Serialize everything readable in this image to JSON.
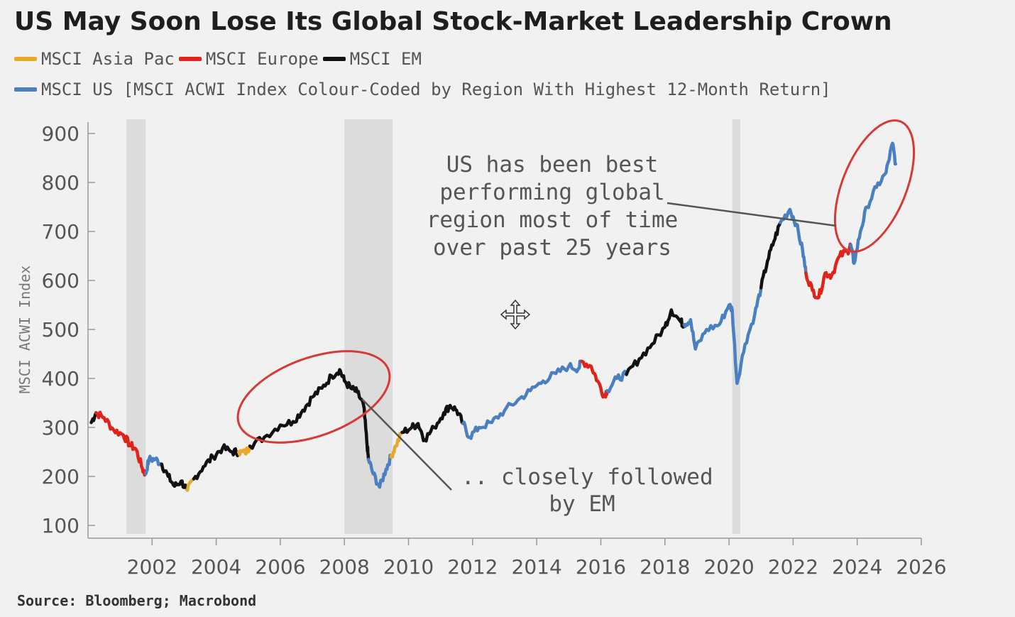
{
  "title": "US May Soon Lose Its Global Stock-Market Leadership Crown",
  "source": "Source: Bloomberg; Macrobond",
  "legend": [
    {
      "label": "MSCI Asia Pac",
      "color": "#e8a92a"
    },
    {
      "label": "MSCI Europe",
      "color": "#e0221b"
    },
    {
      "label": "MSCI EM",
      "color": "#111111"
    },
    {
      "label": "MSCI US [MSCI ACWI Index Colour-Coded by Region With Highest 12-Month Return]",
      "color": "#4a7fc0"
    }
  ],
  "chart_data": {
    "type": "line",
    "title": "US May Soon Lose Its Global Stock-Market Leadership Crown",
    "ylabel": "MSCI ACWI Index",
    "xlabel": "",
    "ylim": [
      100,
      900
    ],
    "xlim": [
      2000.0,
      2026.0
    ],
    "yticks": [
      "100",
      "200",
      "300",
      "400",
      "500",
      "600",
      "700",
      "800",
      "900"
    ],
    "xticks": [
      "2002",
      "2004",
      "2006",
      "2008",
      "2010",
      "2012",
      "2014",
      "2016",
      "2018",
      "2020",
      "2022",
      "2024",
      "2026"
    ],
    "region_colors": {
      "Asia Pac": "#e8a92a",
      "Europe": "#e0221b",
      "EM": "#111111",
      "US": "#4a7fc0"
    },
    "recessions": [
      [
        2001.2,
        2001.8
      ],
      [
        2008.0,
        2009.5
      ],
      [
        2020.1,
        2020.35
      ]
    ],
    "segments": [
      {
        "region": "EM",
        "points": [
          [
            2000.1,
            310
          ],
          [
            2000.25,
            330
          ]
        ]
      },
      {
        "region": "Europe",
        "points": [
          [
            2000.25,
            330
          ],
          [
            2000.5,
            320
          ],
          [
            2000.8,
            295
          ],
          [
            2001.1,
            285
          ],
          [
            2001.3,
            265
          ],
          [
            2001.5,
            255
          ],
          [
            2001.7,
            215
          ],
          [
            2001.8,
            205
          ]
        ]
      },
      {
        "region": "US",
        "points": [
          [
            2001.8,
            205
          ],
          [
            2001.9,
            235
          ],
          [
            2002.1,
            235
          ],
          [
            2002.3,
            225
          ]
        ]
      },
      {
        "region": "EM",
        "points": [
          [
            2002.3,
            225
          ],
          [
            2002.5,
            200
          ],
          [
            2002.7,
            180
          ],
          [
            2002.9,
            190
          ],
          [
            2003.1,
            172
          ]
        ]
      },
      {
        "region": "Asia Pac",
        "points": [
          [
            2003.1,
            172
          ],
          [
            2003.3,
            195
          ]
        ]
      },
      {
        "region": "EM",
        "points": [
          [
            2003.3,
            195
          ],
          [
            2003.6,
            220
          ],
          [
            2003.9,
            240
          ],
          [
            2004.2,
            258
          ],
          [
            2004.5,
            250
          ],
          [
            2004.7,
            250
          ]
        ]
      },
      {
        "region": "Asia Pac",
        "points": [
          [
            2004.7,
            250
          ],
          [
            2004.9,
            248
          ],
          [
            2005.05,
            262
          ]
        ]
      },
      {
        "region": "EM",
        "points": [
          [
            2005.05,
            262
          ],
          [
            2005.5,
            280
          ],
          [
            2006.0,
            305
          ],
          [
            2006.4,
            312
          ],
          [
            2006.7,
            335
          ],
          [
            2007.0,
            362
          ],
          [
            2007.3,
            380
          ],
          [
            2007.6,
            405
          ],
          [
            2007.85,
            418
          ],
          [
            2008.0,
            395
          ],
          [
            2008.2,
            380
          ],
          [
            2008.4,
            372
          ],
          [
            2008.6,
            345
          ],
          [
            2008.7,
            270
          ],
          [
            2008.75,
            235
          ]
        ]
      },
      {
        "region": "US",
        "points": [
          [
            2008.75,
            235
          ],
          [
            2008.9,
            205
          ],
          [
            2009.1,
            178
          ],
          [
            2009.3,
            215
          ],
          [
            2009.45,
            240
          ]
        ]
      },
      {
        "region": "Asia Pac",
        "points": [
          [
            2009.45,
            240
          ],
          [
            2009.6,
            262
          ],
          [
            2009.8,
            290
          ]
        ]
      },
      {
        "region": "EM",
        "points": [
          [
            2009.8,
            290
          ],
          [
            2010.1,
            300
          ],
          [
            2010.3,
            308
          ],
          [
            2010.5,
            275
          ],
          [
            2010.8,
            300
          ],
          [
            2011.1,
            330
          ],
          [
            2011.3,
            345
          ],
          [
            2011.5,
            335
          ],
          [
            2011.7,
            308
          ]
        ]
      },
      {
        "region": "US",
        "points": [
          [
            2011.7,
            308
          ],
          [
            2011.9,
            280
          ],
          [
            2012.2,
            300
          ],
          [
            2012.6,
            310
          ],
          [
            2013.0,
            335
          ],
          [
            2013.4,
            355
          ],
          [
            2013.8,
            375
          ],
          [
            2014.2,
            395
          ],
          [
            2014.6,
            410
          ],
          [
            2015.0,
            425
          ],
          [
            2015.3,
            420
          ],
          [
            2015.4,
            435
          ]
        ]
      },
      {
        "region": "Europe",
        "points": [
          [
            2015.4,
            435
          ],
          [
            2015.7,
            425
          ],
          [
            2015.9,
            395
          ],
          [
            2016.1,
            365
          ],
          [
            2016.2,
            375
          ]
        ]
      },
      {
        "region": "US",
        "points": [
          [
            2016.2,
            375
          ],
          [
            2016.5,
            400
          ],
          [
            2016.8,
            408
          ]
        ]
      },
      {
        "region": "EM",
        "points": [
          [
            2016.8,
            408
          ],
          [
            2017.2,
            440
          ],
          [
            2017.6,
            470
          ],
          [
            2018.0,
            505
          ],
          [
            2018.2,
            540
          ],
          [
            2018.5,
            515
          ],
          [
            2018.6,
            510
          ]
        ]
      },
      {
        "region": "US",
        "points": [
          [
            2018.6,
            510
          ],
          [
            2018.8,
            520
          ],
          [
            2018.95,
            460
          ],
          [
            2019.3,
            500
          ],
          [
            2019.7,
            510
          ],
          [
            2020.0,
            550
          ],
          [
            2020.1,
            540
          ],
          [
            2020.25,
            390
          ],
          [
            2020.5,
            470
          ],
          [
            2020.8,
            530
          ],
          [
            2021.0,
            585
          ]
        ]
      },
      {
        "region": "EM",
        "points": [
          [
            2021.0,
            585
          ],
          [
            2021.2,
            640
          ],
          [
            2021.4,
            680
          ],
          [
            2021.6,
            718
          ]
        ]
      },
      {
        "region": "US",
        "points": [
          [
            2021.6,
            718
          ],
          [
            2021.9,
            745
          ],
          [
            2022.1,
            715
          ],
          [
            2022.3,
            660
          ],
          [
            2022.4,
            615
          ]
        ]
      },
      {
        "region": "Europe",
        "points": [
          [
            2022.4,
            615
          ],
          [
            2022.6,
            580
          ],
          [
            2022.8,
            565
          ],
          [
            2023.0,
            615
          ],
          [
            2023.2,
            610
          ],
          [
            2023.45,
            650
          ],
          [
            2023.7,
            660
          ],
          [
            2023.8,
            672
          ]
        ]
      },
      {
        "region": "US",
        "points": [
          [
            2023.8,
            672
          ],
          [
            2023.9,
            635
          ],
          [
            2024.1,
            700
          ],
          [
            2024.3,
            750
          ],
          [
            2024.6,
            790
          ],
          [
            2024.9,
            820
          ],
          [
            2025.1,
            880
          ],
          [
            2025.2,
            838
          ]
        ]
      }
    ],
    "annotations": [
      {
        "lines": [
          "US has been best",
          "performing global",
          "region most of time",
          "over past 25 years"
        ]
      },
      {
        "lines": [
          ".. closely followed",
          "by EM"
        ]
      }
    ]
  }
}
